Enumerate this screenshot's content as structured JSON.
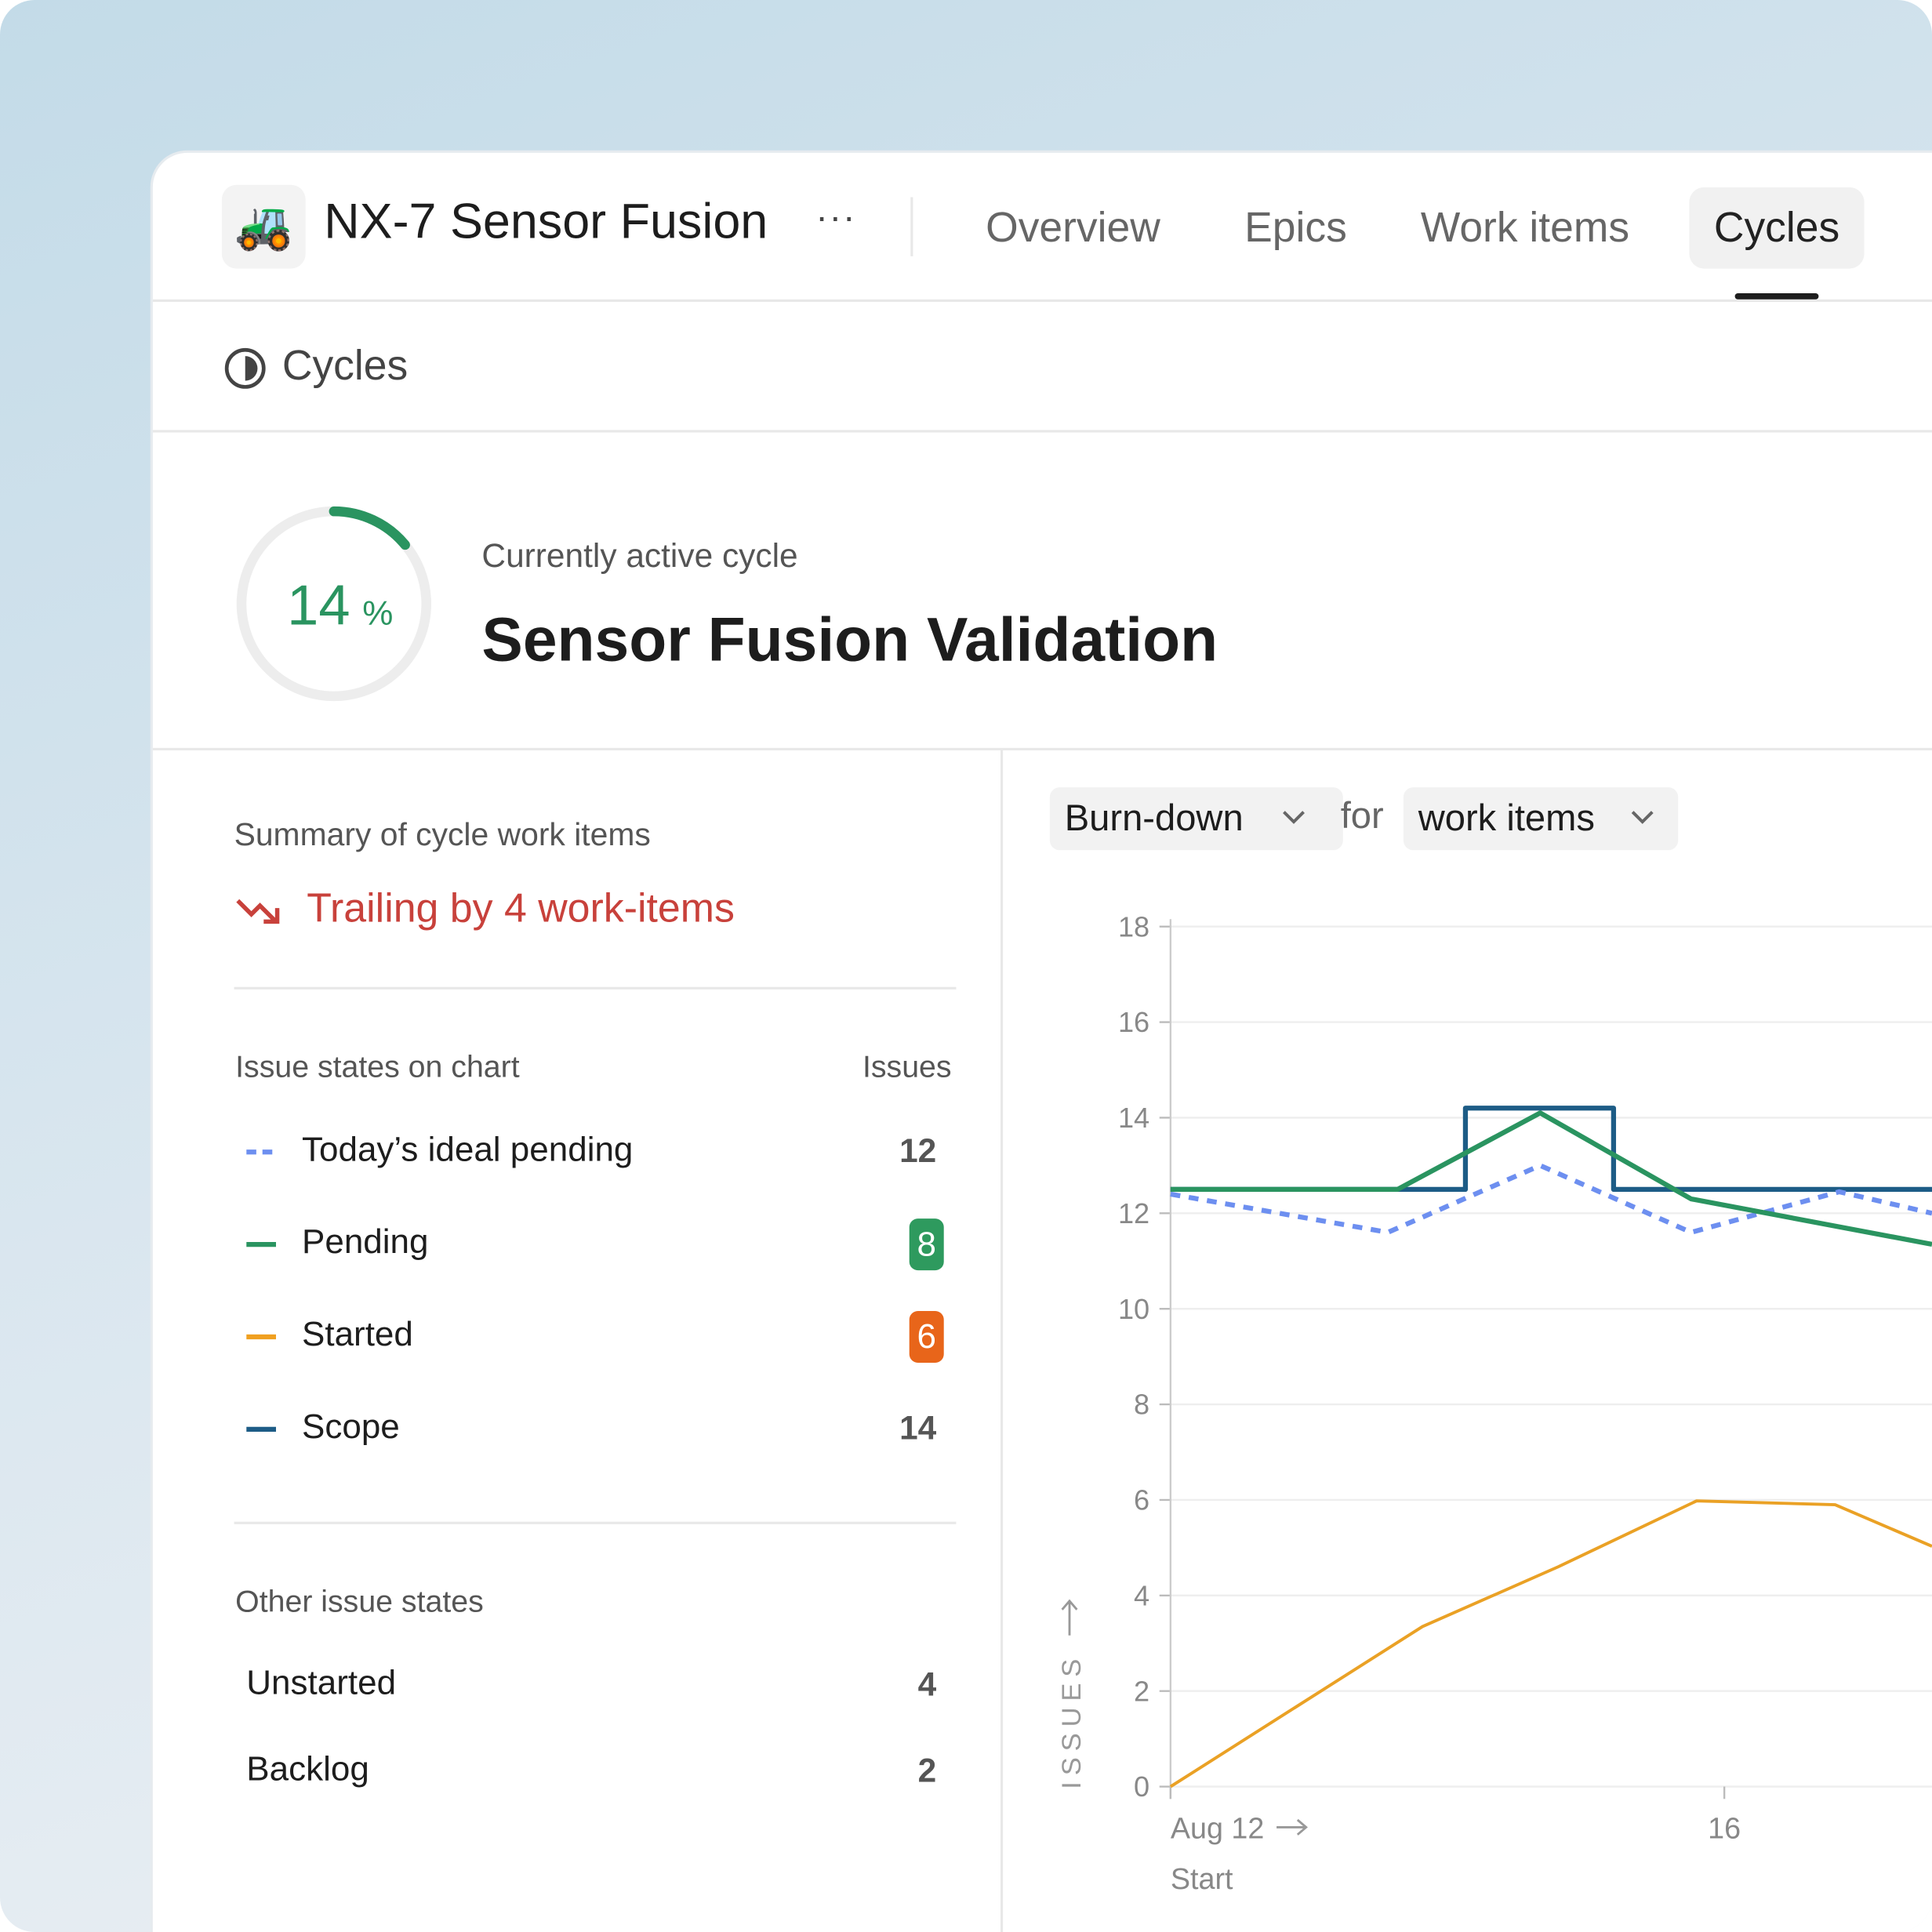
{
  "project": {
    "icon": "🚜",
    "name": "NX-7 Sensor Fusion",
    "menu": "···"
  },
  "tabs": [
    "Overview",
    "Epics",
    "Work items",
    "Cycles"
  ],
  "active_tab": "Cycles",
  "section_title": "Cycles",
  "cycle": {
    "progress": 14,
    "progress_unit": "%",
    "label": "Currently active cycle",
    "name": "Sensor Fusion Validation"
  },
  "summary": {
    "title": "Summary of cycle work items",
    "status": "Trailing by 4 work-items",
    "states_header": "Issue states on chart",
    "count_header": "Issues",
    "states": [
      {
        "name": "Today’s ideal pending",
        "count": 12,
        "color": "#6d8ff0",
        "dashed": true
      },
      {
        "name": "Pending",
        "count": 8,
        "color": "#2a9460",
        "badge": "#2e9a5e"
      },
      {
        "name": "Started",
        "count": 6,
        "color": "#f0a020",
        "badge": "#e8651a"
      },
      {
        "name": "Scope",
        "count": 14,
        "color": "#1d5c86"
      }
    ],
    "other_title": "Other issue states",
    "other": [
      {
        "name": "Unstarted",
        "count": 4
      },
      {
        "name": "Backlog",
        "count": 2
      }
    ]
  },
  "controls": {
    "chart_kind": "Burn-down",
    "joiner": "for",
    "entity": "work items"
  },
  "chart_data": {
    "type": "line",
    "y_label": "ISSUES",
    "x_note": "Start",
    "xlim": [
      12,
      17.5
    ],
    "xticks": [
      {
        "value": 12,
        "label": "Aug 12"
      },
      16
    ],
    "ylim": [
      0,
      18
    ],
    "yticks": [
      0,
      2,
      4,
      6,
      8,
      10,
      12,
      14,
      16,
      18
    ],
    "grid": true,
    "series": [
      {
        "color": "#1d5c86",
        "x": [
          12,
          14.13,
          14.13,
          15.2,
          15.2,
          17.5
        ],
        "values": [
          12.5,
          12.5,
          14.2,
          14.2,
          12.5,
          12.5
        ]
      },
      {
        "color": "#6d8ff0",
        "dashed": true,
        "x": [
          12,
          13.57,
          14.67,
          15.76,
          16.83,
          17.5
        ],
        "values": [
          12.4,
          11.6,
          13.0,
          11.6,
          12.45,
          12.0
        ]
      },
      {
        "color": "#2a9460",
        "x": [
          12,
          13.64,
          14.67,
          15.76,
          17.5
        ],
        "values": [
          12.5,
          12.5,
          14.1,
          12.3,
          11.35
        ]
      },
      {
        "color": "#eaa125",
        "x": [
          12,
          13.82,
          14.8,
          15.8,
          16.8,
          17.5
        ],
        "values": [
          0,
          3.35,
          4.6,
          5.98,
          5.9,
          5.03
        ]
      }
    ]
  }
}
